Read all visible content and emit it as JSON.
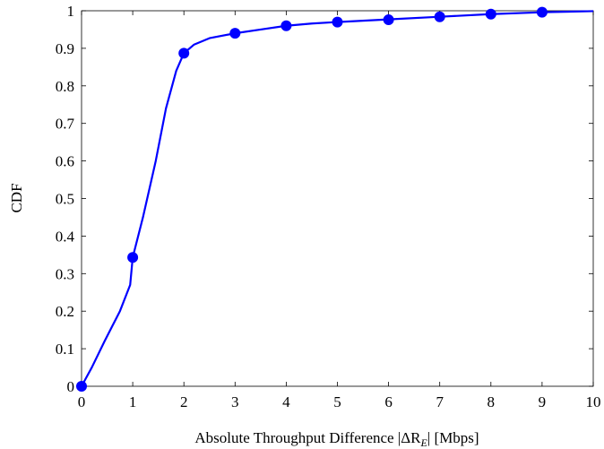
{
  "chart_data": {
    "type": "line",
    "xlabel": "Absolute Throughput Difference |ΔR",
    "xlabel_subscript": "E",
    "xlabel_suffix": "| [Mbps]",
    "ylabel": "CDF",
    "xlim": [
      0,
      10
    ],
    "ylim": [
      0,
      1
    ],
    "x_ticks": [
      0,
      1,
      2,
      3,
      4,
      5,
      6,
      7,
      8,
      9,
      10
    ],
    "x_tick_labels": [
      "0",
      "1",
      "2",
      "3",
      "4",
      "5",
      "6",
      "7",
      "8",
      "9",
      "10"
    ],
    "y_ticks": [
      0,
      0.1,
      0.2,
      0.3,
      0.4,
      0.5,
      0.6,
      0.7,
      0.8,
      0.9,
      1
    ],
    "y_tick_labels": [
      "0",
      "0.1",
      "0.2",
      "0.3",
      "0.4",
      "0.5",
      "0.6",
      "0.7",
      "0.8",
      "0.9",
      "1"
    ],
    "grid": false,
    "line_color": "#0000ff",
    "series": [
      {
        "curve": [
          [
            0,
            0
          ],
          [
            0.2,
            0.05
          ],
          [
            0.45,
            0.12
          ],
          [
            0.75,
            0.2
          ],
          [
            0.95,
            0.27
          ],
          [
            1.0,
            0.343
          ],
          [
            1.2,
            0.45
          ],
          [
            1.45,
            0.6
          ],
          [
            1.65,
            0.74
          ],
          [
            1.85,
            0.84
          ],
          [
            2.0,
            0.887
          ],
          [
            2.2,
            0.91
          ],
          [
            2.5,
            0.927
          ],
          [
            3.0,
            0.94
          ],
          [
            3.5,
            0.95
          ],
          [
            4.0,
            0.96
          ],
          [
            4.5,
            0.966
          ],
          [
            5.0,
            0.97
          ],
          [
            6.0,
            0.977
          ],
          [
            7.0,
            0.984
          ],
          [
            8.0,
            0.991
          ],
          [
            9.0,
            0.996
          ],
          [
            10.0,
            0.999
          ]
        ],
        "markers": [
          [
            0,
            0
          ],
          [
            1,
            0.343
          ],
          [
            2,
            0.887
          ],
          [
            3,
            0.94
          ],
          [
            4,
            0.96
          ],
          [
            5,
            0.97
          ],
          [
            6,
            0.976
          ],
          [
            7,
            0.984
          ],
          [
            8,
            0.991
          ],
          [
            9,
            0.996
          ]
        ]
      }
    ]
  }
}
